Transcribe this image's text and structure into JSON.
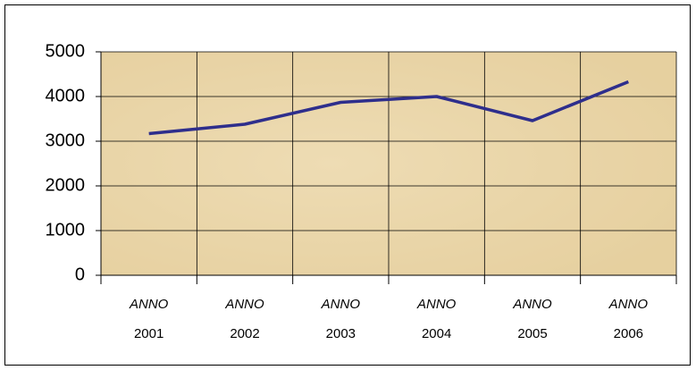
{
  "chart_data": {
    "type": "line",
    "categories": [
      "ANNO 2001",
      "ANNO 2002",
      "ANNO 2003",
      "ANNO 2004",
      "ANNO 2005",
      "ANNO 2006"
    ],
    "series": [
      {
        "color": "#2e2e8c",
        "values": [
          3170,
          3380,
          3870,
          4000,
          3460,
          4330
        ]
      }
    ],
    "ylim": [
      0,
      5000
    ],
    "yticks": [
      0,
      1000,
      2000,
      3000,
      4000,
      5000
    ],
    "grid": true,
    "background": "#ead7ab"
  }
}
